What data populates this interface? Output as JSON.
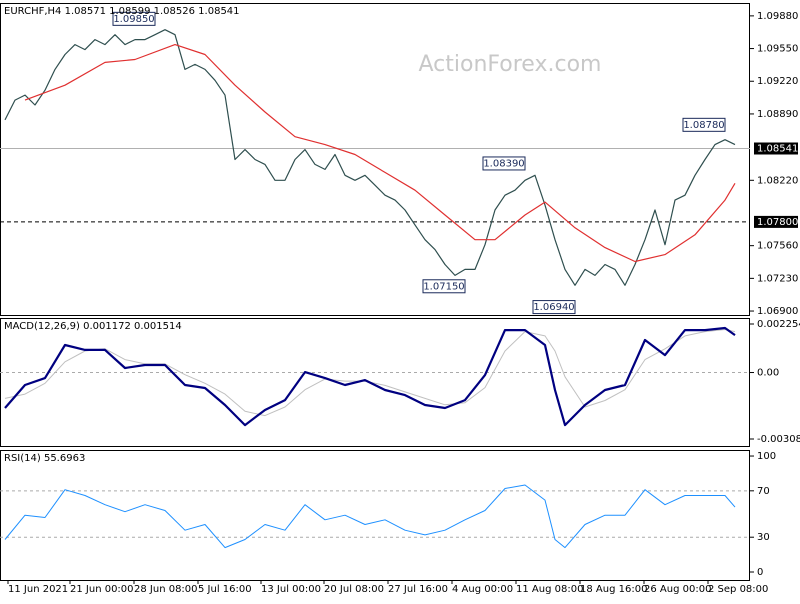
{
  "chart_data": [
    {
      "type": "line",
      "title": "EURCHF,H4  1.08571 1.08599 1.08526 1.08541",
      "watermark": "ActionForex.com",
      "xlim": [
        -0.5,
        74.5
      ],
      "ylim": [
        1.0686,
        1.1001
      ],
      "yticks": [
        {
          "value": 1.0988,
          "label": "1.09880"
        },
        {
          "value": 1.0955,
          "label": "1.09550"
        },
        {
          "value": 1.0922,
          "label": "1.09220"
        },
        {
          "value": 1.0889,
          "label": "1.08890"
        },
        {
          "value": 1.0822,
          "label": "1.08220"
        },
        {
          "value": 1.0756,
          "label": "1.07560"
        },
        {
          "value": 1.0723,
          "label": "1.07230"
        },
        {
          "value": 1.069,
          "label": "1.06900"
        }
      ],
      "markers": [
        {
          "value": 1.08541,
          "label": "1.08541",
          "style": "solid"
        },
        {
          "value": 1.078,
          "label": "1.07800",
          "style": "dashed"
        }
      ],
      "annotations": [
        {
          "x": 15,
          "value": 1.0985,
          "label": "1.09850"
        },
        {
          "x": 52,
          "value": 1.0839,
          "label": "1.08390"
        },
        {
          "x": 46,
          "value": 1.0715,
          "label": "1.07150"
        },
        {
          "x": 57,
          "value": 1.0694,
          "label": "1.06940"
        },
        {
          "x": 72,
          "value": 1.0878,
          "label": "1.08780"
        }
      ],
      "x": [
        0,
        1,
        2,
        3,
        4,
        5,
        6,
        7,
        8,
        9,
        10,
        11,
        12,
        13,
        14,
        15,
        16,
        17,
        18,
        19,
        20,
        21,
        22,
        23,
        24,
        25,
        26,
        27,
        28,
        29,
        30,
        31,
        32,
        33,
        34,
        35,
        36,
        37,
        38,
        39,
        40,
        41,
        42,
        43,
        44,
        45,
        46,
        47,
        48,
        49,
        50,
        51,
        52,
        53,
        54,
        55,
        56,
        57,
        58,
        59,
        60,
        61,
        62,
        63,
        64,
        65,
        66,
        67,
        68,
        69,
        70,
        71,
        72,
        73
      ],
      "series": [
        {
          "color": "#2f4f4f",
          "width": 1.2,
          "values": [
            1.0883,
            1.0903,
            1.0908,
            1.0898,
            1.0913,
            1.0934,
            1.0949,
            1.0959,
            1.0954,
            1.0964,
            1.0959,
            1.0969,
            1.0959,
            1.0964,
            1.0964,
            1.0969,
            1.0974,
            1.0969,
            1.0934,
            1.0939,
            1.0934,
            1.0923,
            1.0908,
            1.0843,
            1.0853,
            1.0843,
            1.0838,
            1.0822,
            1.0822,
            1.0843,
            1.0853,
            1.0838,
            1.0833,
            1.0848,
            1.0827,
            1.0822,
            1.0827,
            1.0817,
            1.0807,
            1.0802,
            1.0792,
            1.0777,
            1.0762,
            1.0752,
            1.0737,
            1.0726,
            1.0732,
            1.0732,
            1.0757,
            1.0792,
            1.0807,
            1.0812,
            1.0822,
            1.0827,
            1.0797,
            1.0762,
            1.0732,
            1.0716,
            1.0732,
            1.0726,
            1.0737,
            1.0732,
            1.0716,
            1.0737,
            1.0762,
            1.0792,
            1.0757,
            1.0802,
            1.0807,
            1.0827,
            1.0843,
            1.0858,
            1.0863,
            1.0858
          ]
        },
        {
          "color": "#e03030",
          "width": 1.2,
          "x": [
            2,
            6,
            10,
            13,
            17,
            20,
            23,
            26,
            29,
            32,
            35,
            38,
            41,
            44,
            47,
            49,
            52,
            54,
            57,
            60,
            63,
            66,
            69,
            72,
            73
          ],
          "values": [
            1.0903,
            1.0918,
            1.0941,
            1.0944,
            1.0959,
            1.0949,
            1.0918,
            1.0891,
            1.0866,
            1.0858,
            1.0848,
            1.083,
            1.0812,
            1.0787,
            1.0762,
            1.0762,
            1.0787,
            1.08,
            1.0774,
            1.0754,
            1.074,
            1.0747,
            1.0767,
            1.0802,
            1.0819
          ]
        }
      ]
    },
    {
      "type": "line",
      "title": "MACD(12,26,9) 0.001172 0.001514",
      "xlim": [
        -0.5,
        74.5
      ],
      "ylim": [
        -0.003413,
        0.002533
      ],
      "yticks": [
        0.002254,
        {
          "value": 0,
          "label": "0.00"
        },
        -0.003088
      ],
      "levels": [
        0
      ],
      "x": [
        0,
        2,
        4,
        6,
        8,
        10,
        12,
        14,
        16,
        18,
        20,
        22,
        24,
        26,
        28,
        30,
        32,
        34,
        36,
        38,
        40,
        42,
        44,
        46,
        48,
        50,
        52,
        54,
        55,
        56,
        58,
        60,
        62,
        64,
        66,
        68,
        70,
        72,
        73
      ],
      "series": [
        {
          "color": "#c0c0c0",
          "width": 1,
          "values": [
            -0.0012,
            -0.001,
            -0.0005,
            0.0005,
            0.001,
            0.0011,
            0.0006,
            0.0004,
            0.0004,
            -0.0001,
            -0.0005,
            -0.001,
            -0.0018,
            -0.002,
            -0.0016,
            -0.0008,
            -0.0003,
            -0.0004,
            -0.0004,
            -0.0006,
            -0.0009,
            -0.0012,
            -0.0015,
            -0.0014,
            -0.0007,
            0.001,
            0.0019,
            0.0017,
            0.001,
            -0.0002,
            -0.0016,
            -0.0013,
            -0.0008,
            0.0006,
            0.0011,
            0.0017,
            0.0019,
            0.002,
            0.0019
          ]
        },
        {
          "color": "#000080",
          "width": 2.2,
          "values": [
            -0.00165,
            -0.00058,
            -0.00026,
            0.00128,
            0.00105,
            0.00105,
            0.00021,
            0.00035,
            0.00035,
            -0.00058,
            -0.00072,
            -0.00151,
            -0.00244,
            -0.00174,
            -0.00128,
            2e-05,
            -0.00026,
            -0.00058,
            -0.00035,
            -0.00081,
            -0.00105,
            -0.00151,
            -0.00165,
            -0.00128,
            -0.00012,
            0.00197,
            0.00197,
            0.00128,
            -0.00081,
            -0.00244,
            -0.00151,
            -0.00081,
            -0.00058,
            0.00151,
            0.00081,
            0.00197,
            0.00197,
            0.00207,
            0.00174
          ]
        }
      ]
    },
    {
      "type": "line",
      "title": "RSI(14) 55.6963",
      "xlim": [
        -0.5,
        74.5
      ],
      "ylim": [
        -6.9,
        105.2
      ],
      "yticks": [
        100,
        70,
        30,
        0
      ],
      "levels": [
        70,
        30
      ],
      "xticks": [
        {
          "value": 0,
          "label": "11 Jun 2021"
        },
        {
          "value": 6.2,
          "label": "21 Jun 00:00"
        },
        {
          "value": 12.6,
          "label": "28 Jun 08:00"
        },
        {
          "value": 19,
          "label": "5 Jul 16:00"
        },
        {
          "value": 25.3,
          "label": "13 Jul 00:00"
        },
        {
          "value": 31.6,
          "label": "20 Jul 08:00"
        },
        {
          "value": 38,
          "label": "27 Jul 16:00"
        },
        {
          "value": 44.4,
          "label": "4 Aug 00:00"
        },
        {
          "value": 50.8,
          "label": "11 Aug 08:00"
        },
        {
          "value": 57.2,
          "label": "18 Aug 16:00"
        },
        {
          "value": 63.6,
          "label": "26 Aug 00:00"
        },
        {
          "value": 70,
          "label": "2 Sep 08:00"
        }
      ],
      "x": [
        0,
        2,
        4,
        6,
        8,
        10,
        12,
        14,
        16,
        18,
        20,
        22,
        24,
        26,
        28,
        30,
        32,
        34,
        36,
        38,
        40,
        42,
        44,
        46,
        48,
        50,
        52,
        54,
        55,
        56,
        58,
        60,
        62,
        64,
        66,
        68,
        70,
        72,
        73
      ],
      "series": [
        {
          "color": "#1e90ff",
          "width": 1,
          "values": [
            28,
            49,
            47,
            71,
            66,
            58,
            52,
            58,
            53,
            36,
            41,
            21,
            28,
            41,
            36,
            58,
            45,
            49,
            41,
            45,
            36,
            32,
            36,
            45,
            53,
            72,
            75,
            62,
            28,
            21,
            41,
            49,
            49,
            71,
            58,
            66,
            66,
            66,
            56
          ]
        }
      ]
    }
  ]
}
